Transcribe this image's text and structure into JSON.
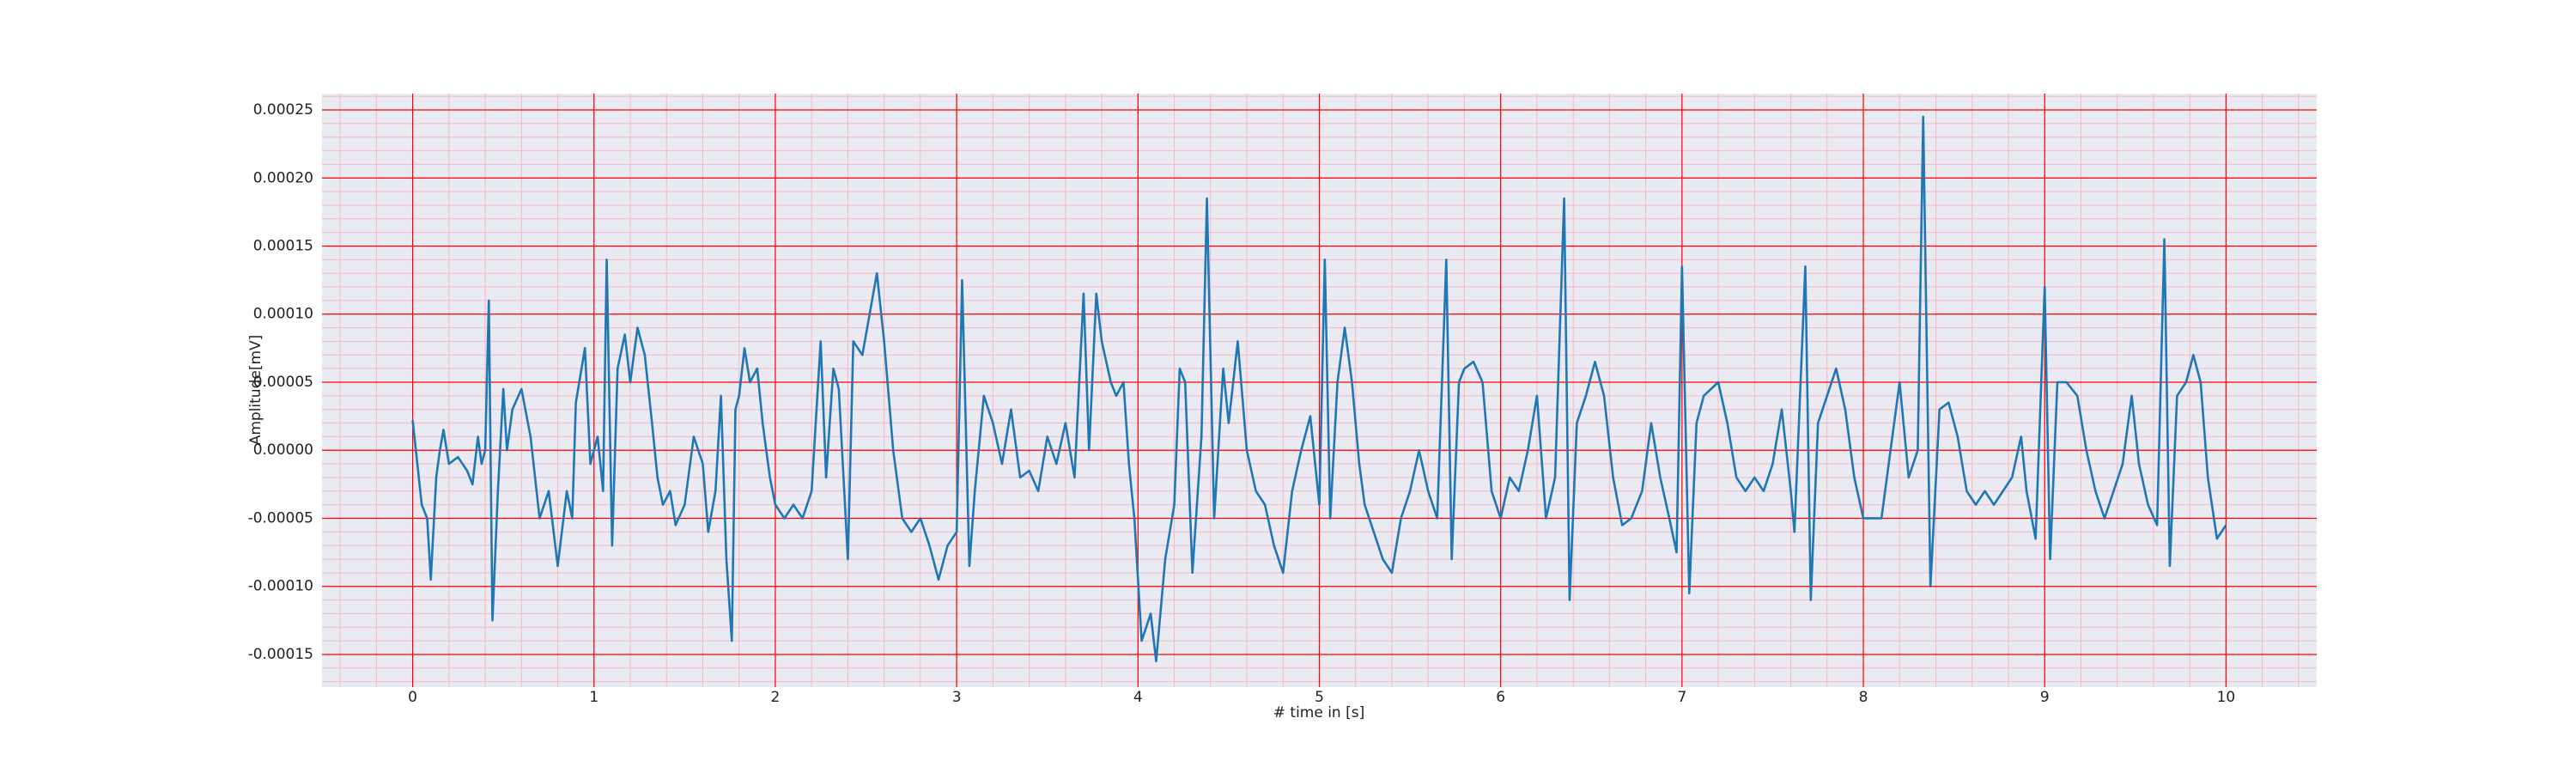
{
  "chart_data": {
    "type": "line",
    "xlabel": "# time in [s]",
    "ylabel": "Amplitude[mV]",
    "color": "#1f77b4",
    "grid": true,
    "grid_color": "#ff0000",
    "minor_grid": true,
    "minor_grid_color": "#f7b6c2",
    "background": "#eaeaf2",
    "xlim": [
      -0.5,
      10.5
    ],
    "xticks": [
      0,
      1,
      2,
      3,
      4,
      5,
      6,
      7,
      8,
      9,
      10
    ],
    "ylim": [
      -0.000174,
      0.000262
    ],
    "yticks": [
      0.00025,
      {
        "value": 0.0002,
        "label": "0.00020"
      },
      0.00015,
      {
        "value": 0.0001,
        "label": "0.00010"
      },
      5e-05,
      {
        "value": 0,
        "label": "0.00000"
      },
      -5e-05,
      {
        "value": -0.0001,
        "label": "-0.00010"
      },
      -0.00015
    ],
    "x": [
      0,
      0.05,
      0.08,
      0.1,
      0.13,
      0.15,
      0.17,
      0.2,
      0.25,
      0.3,
      0.33,
      0.36,
      0.38,
      0.4,
      0.42,
      0.44,
      0.47,
      0.5,
      0.52,
      0.55,
      0.6,
      0.65,
      0.7,
      0.75,
      0.8,
      0.85,
      0.88,
      0.9,
      0.95,
      0.98,
      1.02,
      1.05,
      1.07,
      1.1,
      1.13,
      1.17,
      1.2,
      1.24,
      1.28,
      1.32,
      1.35,
      1.38,
      1.42,
      1.45,
      1.5,
      1.55,
      1.6,
      1.63,
      1.67,
      1.7,
      1.73,
      1.76,
      1.78,
      1.8,
      1.83,
      1.86,
      1.9,
      1.93,
      1.97,
      2.0,
      2.05,
      2.1,
      2.15,
      2.2,
      2.25,
      2.28,
      2.32,
      2.35,
      2.4,
      2.43,
      2.48,
      2.52,
      2.56,
      2.6,
      2.65,
      2.7,
      2.75,
      2.8,
      2.85,
      2.9,
      2.95,
      3.0,
      3.03,
      3.07,
      3.1,
      3.15,
      3.2,
      3.25,
      3.3,
      3.35,
      3.4,
      3.45,
      3.5,
      3.55,
      3.6,
      3.65,
      3.7,
      3.73,
      3.77,
      3.8,
      3.85,
      3.88,
      3.92,
      3.95,
      3.98,
      4.02,
      4.07,
      4.1,
      4.15,
      4.2,
      4.23,
      4.26,
      4.3,
      4.35,
      4.38,
      4.42,
      4.47,
      4.5,
      4.55,
      4.6,
      4.65,
      4.7,
      4.75,
      4.8,
      4.85,
      4.9,
      4.95,
      5.0,
      5.03,
      5.06,
      5.1,
      5.14,
      5.18,
      5.22,
      5.25,
      5.3,
      5.35,
      5.4,
      5.45,
      5.5,
      5.55,
      5.6,
      5.65,
      5.7,
      5.73,
      5.77,
      5.8,
      5.85,
      5.9,
      5.95,
      6.0,
      6.05,
      6.1,
      6.15,
      6.2,
      6.25,
      6.3,
      6.35,
      6.38,
      6.42,
      6.47,
      6.52,
      6.57,
      6.62,
      6.67,
      6.72,
      6.78,
      6.83,
      6.88,
      6.93,
      6.97,
      7.0,
      7.04,
      7.08,
      7.12,
      7.2,
      7.25,
      7.3,
      7.35,
      7.4,
      7.45,
      7.5,
      7.55,
      7.6,
      7.62,
      7.68,
      7.71,
      7.75,
      7.8,
      7.85,
      7.9,
      7.95,
      8.0,
      8.05,
      8.1,
      8.15,
      8.2,
      8.25,
      8.3,
      8.33,
      8.37,
      8.42,
      8.47,
      8.52,
      8.57,
      8.62,
      8.67,
      8.72,
      8.77,
      8.82,
      8.87,
      8.9,
      8.95,
      9.0,
      9.03,
      9.07,
      9.12,
      9.18,
      9.23,
      9.28,
      9.33,
      9.38,
      9.43,
      9.48,
      9.52,
      9.57,
      9.62,
      9.66,
      9.69,
      9.73,
      9.78,
      9.82,
      9.86,
      9.9,
      9.95,
      10.0
    ],
    "values": [
      2.2e-05,
      -4e-05,
      -5e-05,
      -9.5e-05,
      -2e-05,
      0,
      1.5e-05,
      -1e-05,
      -5e-06,
      -1.5e-05,
      -2.5e-05,
      1e-05,
      -1e-05,
      0,
      0.00011,
      -0.000125,
      -3e-05,
      4.5e-05,
      0,
      3e-05,
      4.5e-05,
      1e-05,
      -5e-05,
      -3e-05,
      -8.5e-05,
      -3e-05,
      -5e-05,
      3.5e-05,
      7.5e-05,
      -1e-05,
      1e-05,
      -3e-05,
      0.00014,
      -7e-05,
      6e-05,
      8.5e-05,
      5e-05,
      9e-05,
      7e-05,
      2e-05,
      -2e-05,
      -4e-05,
      -3e-05,
      -5.5e-05,
      -4e-05,
      1e-05,
      -1e-05,
      -6e-05,
      -3e-05,
      4e-05,
      -8e-05,
      -0.00014,
      3e-05,
      4e-05,
      7.5e-05,
      5e-05,
      6e-05,
      2e-05,
      -2e-05,
      -4e-05,
      -5e-05,
      -4e-05,
      -5e-05,
      -3e-05,
      8e-05,
      -2e-05,
      6e-05,
      4.5e-05,
      -8e-05,
      8e-05,
      7e-05,
      0.0001,
      0.00013,
      8e-05,
      0,
      -5e-05,
      -6e-05,
      -5e-05,
      -7e-05,
      -9.5e-05,
      -7e-05,
      -6e-05,
      0.000125,
      -8.5e-05,
      -3e-05,
      4e-05,
      2e-05,
      -1e-05,
      3e-05,
      -2e-05,
      -1.5e-05,
      -3e-05,
      1e-05,
      -1e-05,
      2e-05,
      -2e-05,
      0.000115,
      0,
      0.000115,
      8e-05,
      5e-05,
      4e-05,
      5e-05,
      -1e-05,
      -5e-05,
      -0.00014,
      -0.00012,
      -0.000155,
      -8e-05,
      -4e-05,
      6e-05,
      5e-05,
      -9e-05,
      1e-05,
      0.000185,
      -5e-05,
      6e-05,
      2e-05,
      8e-05,
      0,
      -3e-05,
      -4e-05,
      -7e-05,
      -9e-05,
      -3e-05,
      0,
      2.5e-05,
      -4e-05,
      0.00014,
      -5e-05,
      5e-05,
      9e-05,
      5e-05,
      -1e-05,
      -4e-05,
      -6e-05,
      -8e-05,
      -9e-05,
      -5e-05,
      -3e-05,
      0,
      -3e-05,
      -5e-05,
      0.00014,
      -8e-05,
      5e-05,
      6e-05,
      6.5e-05,
      5e-05,
      -3e-05,
      -5e-05,
      -2e-05,
      -3e-05,
      0,
      4e-05,
      -5e-05,
      -2e-05,
      0.000185,
      -0.00011,
      2e-05,
      4e-05,
      6.5e-05,
      4e-05,
      -2e-05,
      -5.5e-05,
      -5e-05,
      -3e-05,
      2e-05,
      -2e-05,
      -5e-05,
      -7.5e-05,
      0.000135,
      -0.000105,
      2e-05,
      4e-05,
      5e-05,
      2e-05,
      -2e-05,
      -3e-05,
      -2e-05,
      -3e-05,
      -1e-05,
      3e-05,
      -3e-05,
      -6e-05,
      0.000135,
      -0.00011,
      2e-05,
      4e-05,
      6e-05,
      3e-05,
      -2e-05,
      -5e-05,
      -5e-05,
      -5e-05,
      0,
      5e-05,
      -2e-05,
      0,
      0.000245,
      -0.0001,
      3e-05,
      3.5e-05,
      1e-05,
      -3e-05,
      -4e-05,
      -3e-05,
      -4e-05,
      -3e-05,
      -2e-05,
      1e-05,
      -3e-05,
      -6.5e-05,
      0.00012,
      -8e-05,
      5e-05,
      5e-05,
      4e-05,
      0,
      -3e-05,
      -5e-05,
      -3e-05,
      -1e-05,
      4e-05,
      -1e-05,
      -4e-05,
      -5.5e-05,
      0.000155,
      -8.5e-05,
      4e-05,
      5e-05,
      7e-05,
      5e-05,
      -2e-05,
      -6.5e-05,
      -5.5e-05
    ]
  }
}
